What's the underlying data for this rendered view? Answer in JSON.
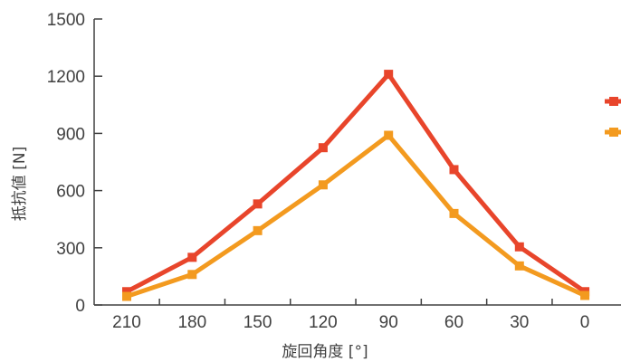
{
  "chart_data": {
    "type": "line",
    "title": "",
    "xlabel": "旋回角度 [°]",
    "ylabel": "抵抗値 [N]",
    "categories": [
      "210",
      "180",
      "150",
      "120",
      "90",
      "60",
      "30",
      "0"
    ],
    "ylim": [
      0,
      1500
    ],
    "yticks": [
      0,
      300,
      600,
      900,
      1200,
      1500
    ],
    "grid": false,
    "legend": "right",
    "series": [
      {
        "color": "#e8452b",
        "values": [
          70,
          250,
          530,
          825,
          1210,
          710,
          305,
          70
        ]
      },
      {
        "color": "#f39a1f",
        "values": [
          45,
          160,
          390,
          630,
          890,
          480,
          205,
          50
        ]
      }
    ]
  }
}
